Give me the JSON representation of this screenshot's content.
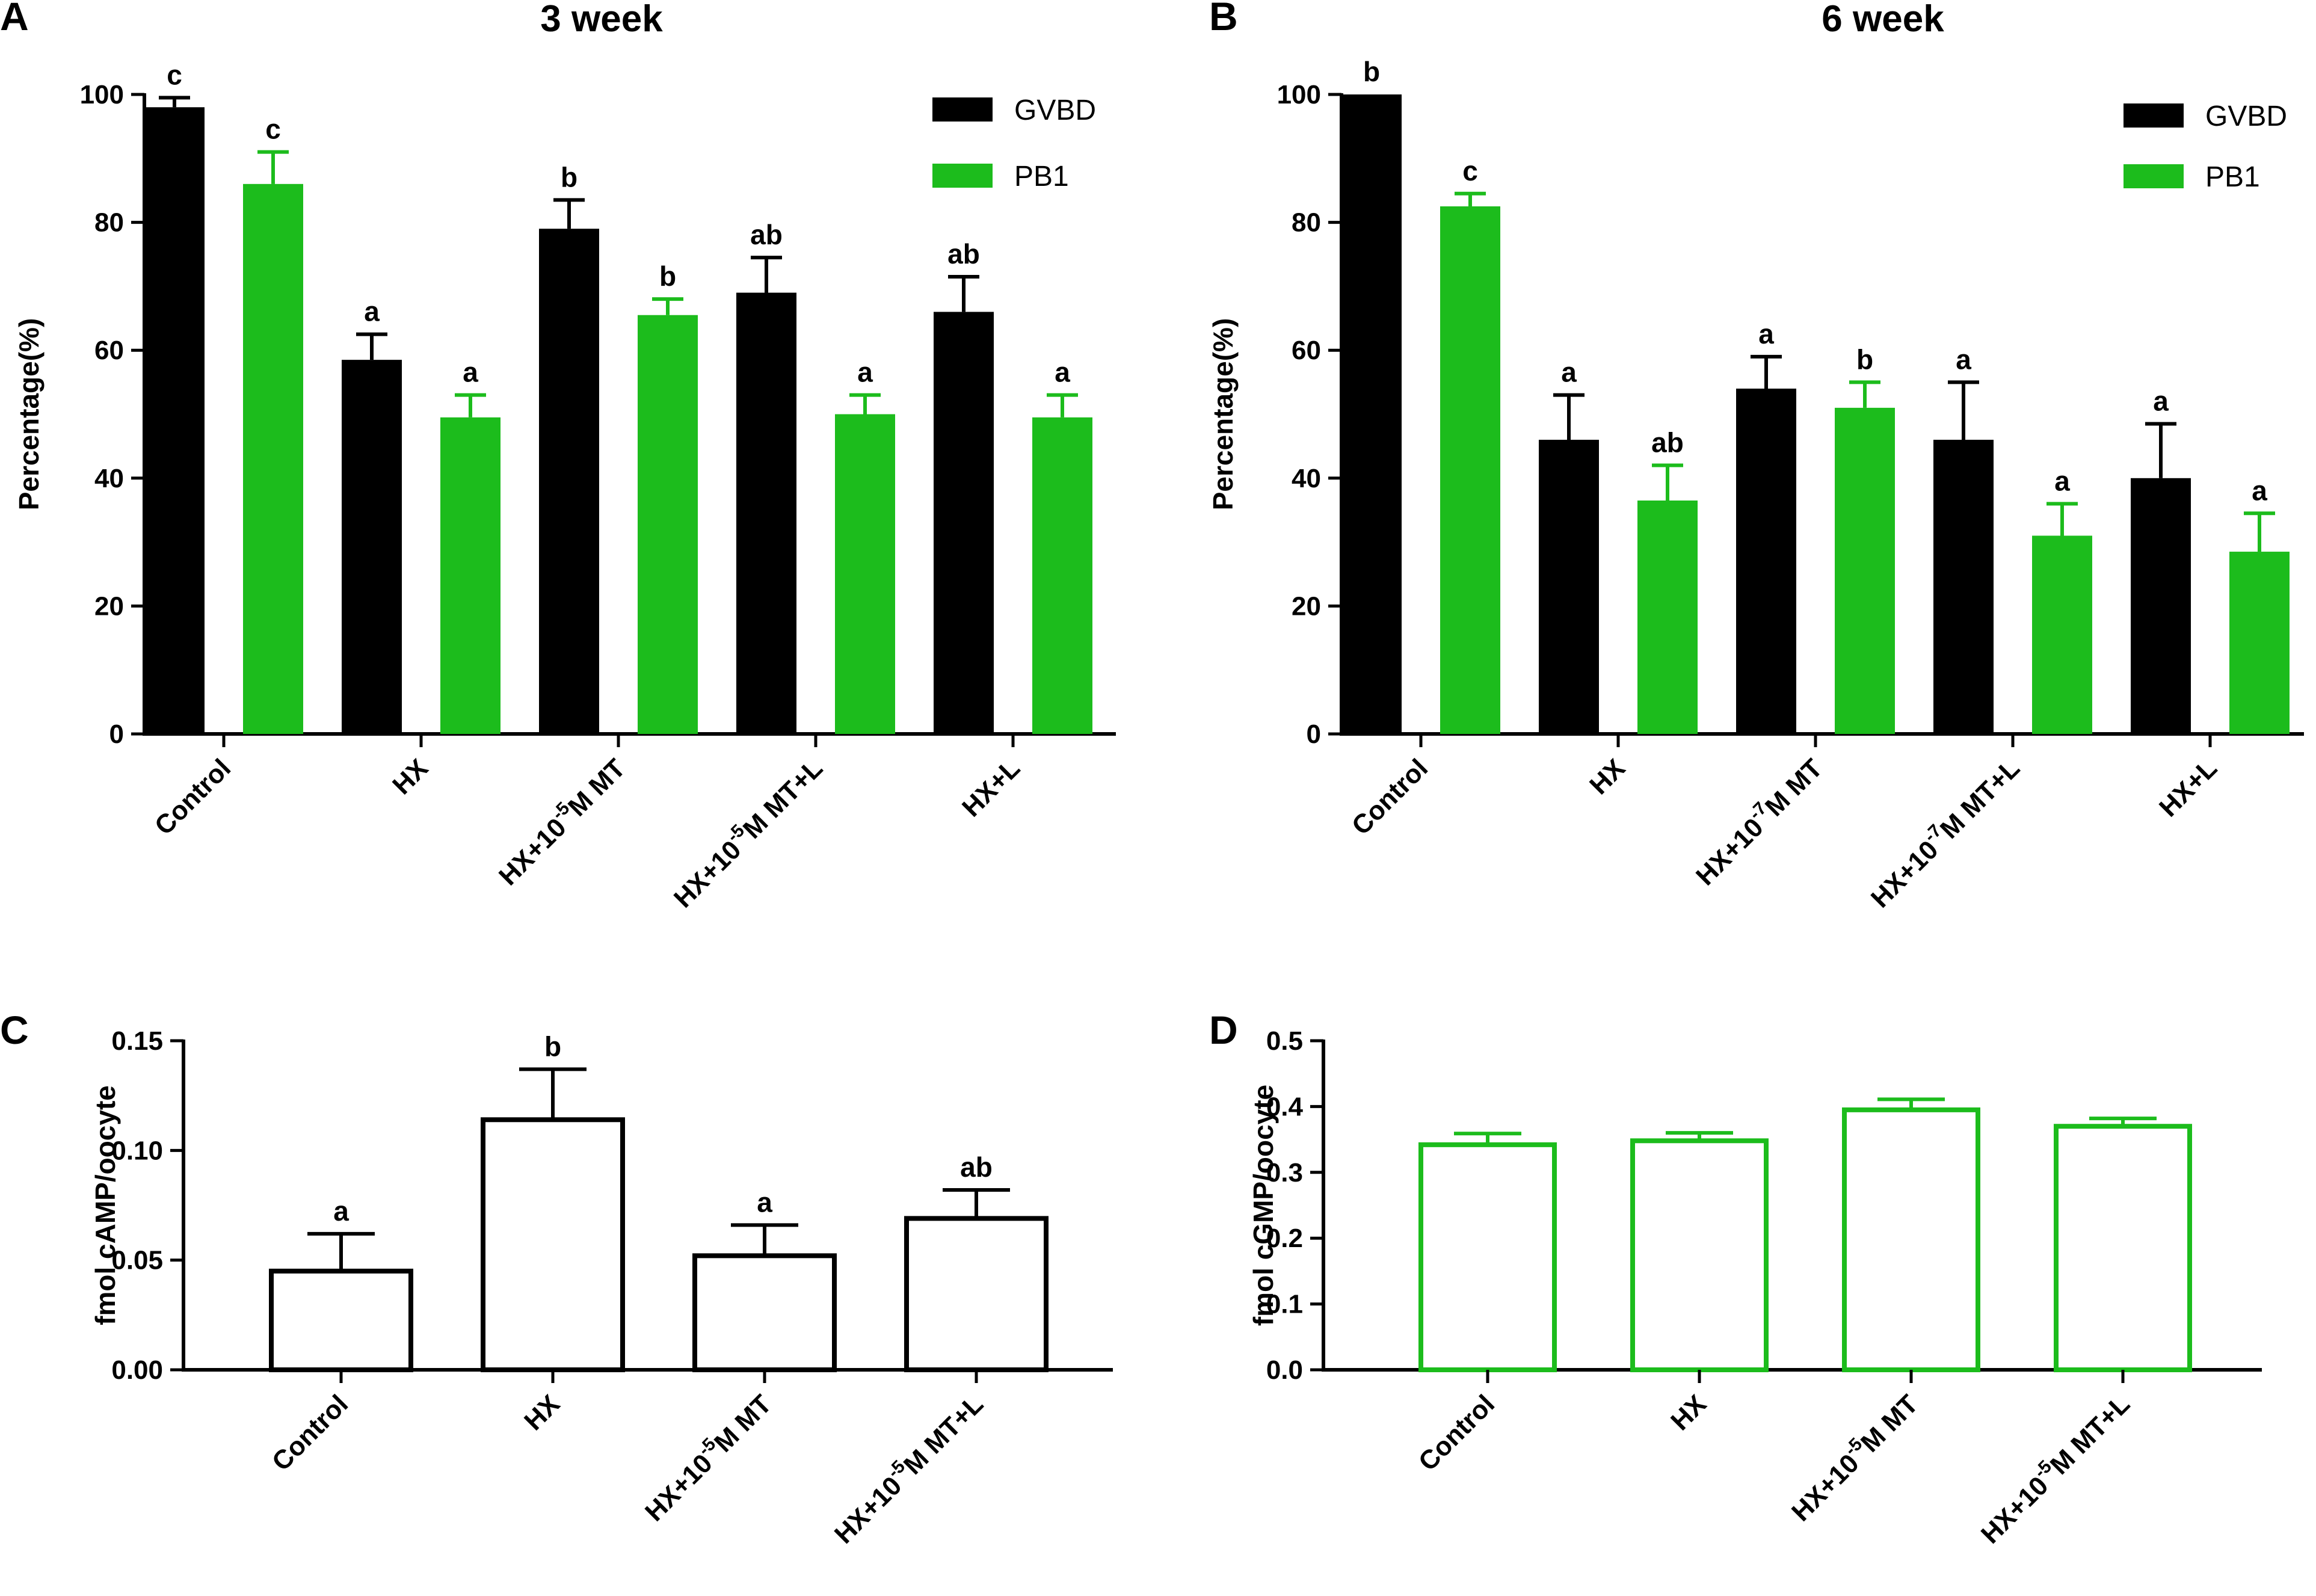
{
  "colors": {
    "gvbd": "#000000",
    "pb1": "#1cbc1c",
    "axis": "#000000",
    "background": "#ffffff"
  },
  "chart_data": [
    {
      "panel": "A",
      "type": "bar",
      "title": "3 week",
      "xlabel": "",
      "ylabel": "Percentage(%)",
      "ylim": [
        0,
        100
      ],
      "yticks": [
        "0",
        "20",
        "40",
        "60",
        "80",
        "100"
      ],
      "categories": [
        {
          "base": "Control",
          "sup": "",
          "tail": ""
        },
        {
          "base": "HX",
          "sup": "",
          "tail": ""
        },
        {
          "base": "HX+10",
          "sup": "-5",
          "tail": "M MT"
        },
        {
          "base": "HX+10",
          "sup": "-5",
          "tail": "M MT+L"
        },
        {
          "base": "HX+L",
          "sup": "",
          "tail": ""
        }
      ],
      "legend": {
        "position": "top-right",
        "entries": [
          "GVBD",
          "PB1"
        ]
      },
      "series": [
        {
          "name": "GVBD",
          "style": "solid-black",
          "values": [
            98,
            58.5,
            79,
            69,
            66
          ],
          "errors": [
            1.5,
            4,
            4.5,
            5.5,
            5.5
          ],
          "labels": [
            "c",
            "a",
            "b",
            "ab",
            "ab"
          ]
        },
        {
          "name": "PB1",
          "style": "solid-green",
          "values": [
            86,
            49.5,
            65.5,
            50,
            49.5
          ],
          "errors": [
            5,
            3.5,
            2.5,
            3,
            3.5
          ],
          "labels": [
            "c",
            "a",
            "b",
            "a",
            "a"
          ]
        }
      ]
    },
    {
      "panel": "B",
      "type": "bar",
      "title": "6 week",
      "xlabel": "",
      "ylabel": "Percentage(%)",
      "ylim": [
        0,
        100
      ],
      "yticks": [
        "0",
        "20",
        "40",
        "60",
        "80",
        "100"
      ],
      "categories": [
        {
          "base": "Control",
          "sup": "",
          "tail": ""
        },
        {
          "base": "HX",
          "sup": "",
          "tail": ""
        },
        {
          "base": "HX+10",
          "sup": "-7",
          "tail": "M MT"
        },
        {
          "base": "HX+10",
          "sup": "-7",
          "tail": "M MT+L"
        },
        {
          "base": "HX+L",
          "sup": "",
          "tail": ""
        }
      ],
      "legend": {
        "position": "top-right",
        "entries": [
          "GVBD",
          "PB1"
        ]
      },
      "series": [
        {
          "name": "GVBD",
          "style": "solid-black",
          "values": [
            100,
            46,
            54,
            46,
            40
          ],
          "errors": [
            0,
            7,
            5,
            9,
            8.5
          ],
          "labels": [
            "b",
            "a",
            "a",
            "a",
            "a"
          ]
        },
        {
          "name": "PB1",
          "style": "solid-green",
          "values": [
            82.5,
            36.5,
            51,
            31,
            28.5
          ],
          "errors": [
            2,
            5.5,
            4,
            5,
            6
          ],
          "labels": [
            "c",
            "ab",
            "b",
            "a",
            "a"
          ]
        }
      ]
    },
    {
      "panel": "C",
      "type": "bar",
      "title": "",
      "xlabel": "",
      "ylabel": "fmol cAMP/oocyte",
      "ylim": [
        0,
        0.15
      ],
      "yticks": [
        "0.00",
        "0.05",
        "0.10",
        "0.15"
      ],
      "categories": [
        {
          "base": "Control",
          "sup": "",
          "tail": ""
        },
        {
          "base": "HX",
          "sup": "",
          "tail": ""
        },
        {
          "base": "HX+10",
          "sup": "-5",
          "tail": "M MT"
        },
        {
          "base": "HX+10",
          "sup": "-5",
          "tail": "M MT+L"
        }
      ],
      "series": [
        {
          "name": "cAMP",
          "style": "outline-black",
          "values": [
            0.045,
            0.114,
            0.052,
            0.069
          ],
          "errors": [
            0.017,
            0.023,
            0.014,
            0.013
          ],
          "labels": [
            "a",
            "b",
            "a",
            "ab"
          ]
        }
      ]
    },
    {
      "panel": "D",
      "type": "bar",
      "title": "",
      "xlabel": "",
      "ylabel": "fmol cGMP/oocyte",
      "ylim": [
        0,
        0.5
      ],
      "yticks": [
        "0.0",
        "0.1",
        "0.2",
        "0.3",
        "0.4",
        "0.5"
      ],
      "categories": [
        {
          "base": "Control",
          "sup": "",
          "tail": ""
        },
        {
          "base": "HX",
          "sup": "",
          "tail": ""
        },
        {
          "base": "HX+10",
          "sup": "-5",
          "tail": "M MT"
        },
        {
          "base": "HX+10",
          "sup": "-5",
          "tail": "M MT+L"
        }
      ],
      "series": [
        {
          "name": "cGMP",
          "style": "outline-green",
          "values": [
            0.342,
            0.348,
            0.395,
            0.37
          ],
          "errors": [
            0.017,
            0.012,
            0.016,
            0.012
          ],
          "labels": [
            "",
            "",
            "",
            ""
          ]
        }
      ]
    }
  ]
}
